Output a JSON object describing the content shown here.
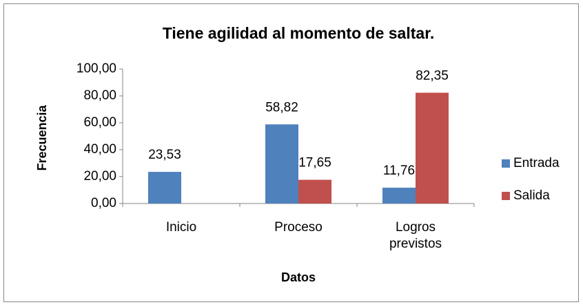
{
  "chart_data": {
    "type": "bar",
    "title": "Tiene agilidad al momento de saltar.",
    "x_label": "Datos",
    "y_label": "Frecuencia",
    "categories": [
      "Inicio",
      "Proceso",
      "Logros previstos"
    ],
    "series": [
      {
        "name": "Entrada",
        "color": "#4f81bd",
        "values": [
          23.53,
          58.82,
          11.76
        ],
        "value_labels": [
          "23,53",
          "58,82",
          "11,76"
        ]
      },
      {
        "name": "Salida",
        "color": "#c0504d",
        "values": [
          null,
          17.65,
          82.35
        ],
        "value_labels": [
          null,
          "17,65",
          "82,35"
        ]
      }
    ],
    "ylim": [
      0,
      100
    ],
    "yticks": [
      {
        "value": 0,
        "label": "0,00"
      },
      {
        "value": 20,
        "label": "20,00"
      },
      {
        "value": 40,
        "label": "40,00"
      },
      {
        "value": 60,
        "label": "60,00"
      },
      {
        "value": 80,
        "label": "80,00"
      },
      {
        "value": 100,
        "label": "100,00"
      }
    ],
    "legend": "right"
  }
}
